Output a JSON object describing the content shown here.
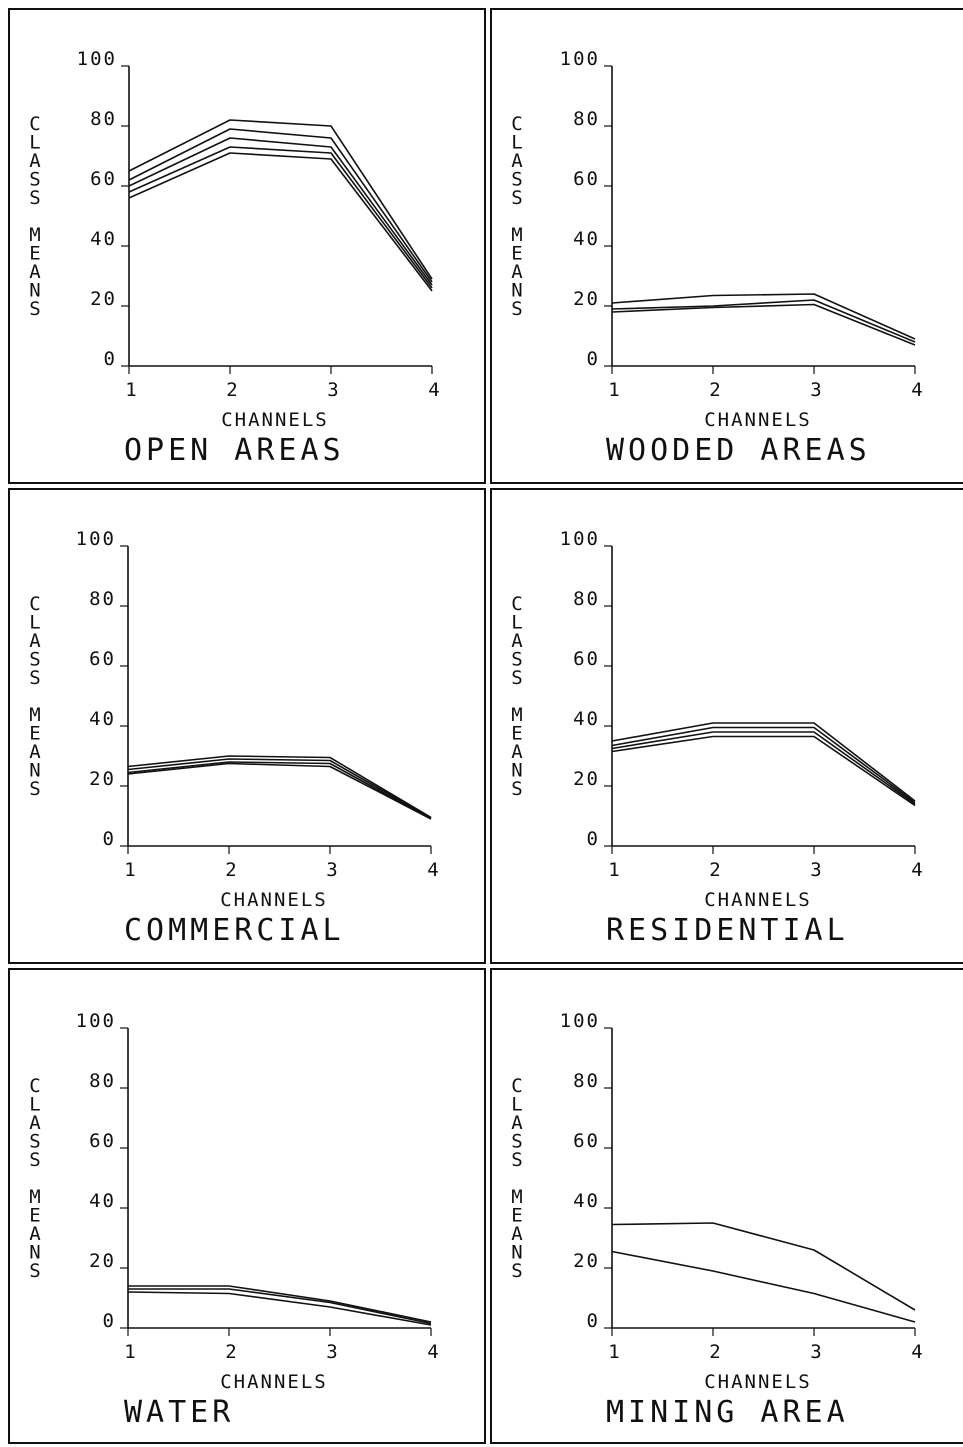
{
  "chart_data": [
    {
      "type": "line",
      "title": "OPEN AREAS",
      "xlabel": "CHANNELS",
      "ylabel": "CLASS MEANS",
      "x": [
        1,
        2,
        3,
        4
      ],
      "xticks": [
        "1",
        "2",
        "3",
        "4"
      ],
      "yticks": [
        "0",
        "20",
        "40",
        "60",
        "80",
        "100"
      ],
      "ylim": [
        0,
        100
      ],
      "series": [
        {
          "values": [
            65,
            82,
            80,
            29
          ]
        },
        {
          "values": [
            62,
            79,
            76,
            28
          ]
        },
        {
          "values": [
            60,
            76,
            73,
            27
          ]
        },
        {
          "values": [
            58,
            73,
            71,
            26
          ]
        },
        {
          "values": [
            56,
            71,
            69,
            25
          ]
        }
      ]
    },
    {
      "type": "line",
      "title": "WOODED AREAS",
      "xlabel": "CHANNELS",
      "ylabel": "CLASS MEANS",
      "x": [
        1,
        2,
        3,
        4
      ],
      "xticks": [
        "1",
        "2",
        "3",
        "4"
      ],
      "yticks": [
        "0",
        "20",
        "40",
        "60",
        "80",
        "100"
      ],
      "ylim": [
        0,
        100
      ],
      "series": [
        {
          "values": [
            21,
            23.5,
            24,
            9
          ]
        },
        {
          "values": [
            19,
            20,
            22,
            8
          ]
        },
        {
          "values": [
            18,
            19.5,
            20.5,
            7
          ]
        }
      ]
    },
    {
      "type": "line",
      "title": "COMMERCIAL",
      "xlabel": "CHANNELS",
      "ylabel": "CLASS MEANS",
      "x": [
        1,
        2,
        3,
        4
      ],
      "xticks": [
        "1",
        "2",
        "3",
        "4"
      ],
      "yticks": [
        "0",
        "20",
        "40",
        "60",
        "80",
        "100"
      ],
      "ylim": [
        0,
        100
      ],
      "series": [
        {
          "values": [
            26.5,
            30,
            29.5,
            9.5
          ]
        },
        {
          "values": [
            25.5,
            29,
            28.5,
            9.3
          ]
        },
        {
          "values": [
            24.5,
            28,
            27.5,
            9.1
          ]
        },
        {
          "values": [
            24,
            27.5,
            26.5,
            9
          ]
        }
      ]
    },
    {
      "type": "line",
      "title": "RESIDENTIAL",
      "xlabel": "CHANNELS",
      "ylabel": "CLASS MEANS",
      "x": [
        1,
        2,
        3,
        4
      ],
      "xticks": [
        "1",
        "2",
        "3",
        "4"
      ],
      "yticks": [
        "0",
        "20",
        "40",
        "60",
        "80",
        "100"
      ],
      "ylim": [
        0,
        100
      ],
      "series": [
        {
          "values": [
            35,
            41,
            41,
            15
          ]
        },
        {
          "values": [
            33.5,
            39.5,
            39.5,
            14.5
          ]
        },
        {
          "values": [
            32.5,
            38,
            38,
            14
          ]
        },
        {
          "values": [
            31.5,
            36.5,
            36.5,
            13.5
          ]
        }
      ]
    },
    {
      "type": "line",
      "title": "WATER",
      "xlabel": "CHANNELS",
      "ylabel": "CLASS MEANS",
      "x": [
        1,
        2,
        3,
        4
      ],
      "xticks": [
        "1",
        "2",
        "3",
        "4"
      ],
      "yticks": [
        "0",
        "20",
        "40",
        "60",
        "80",
        "100"
      ],
      "ylim": [
        0,
        100
      ],
      "series": [
        {
          "values": [
            14,
            14,
            9,
            2
          ]
        },
        {
          "values": [
            13,
            13,
            8.5,
            1.5
          ]
        },
        {
          "values": [
            12,
            11.5,
            7,
            1
          ]
        }
      ]
    },
    {
      "type": "line",
      "title": "MINING AREA",
      "xlabel": "CHANNELS",
      "ylabel": "CLASS MEANS",
      "x": [
        1,
        2,
        3,
        4
      ],
      "xticks": [
        "1",
        "2",
        "3",
        "4"
      ],
      "yticks": [
        "0",
        "20",
        "40",
        "60",
        "80",
        "100"
      ],
      "ylim": [
        0,
        100
      ],
      "series": [
        {
          "values": [
            34.5,
            35,
            26,
            6
          ]
        },
        {
          "values": [
            25.5,
            19,
            11.5,
            2
          ]
        }
      ]
    }
  ]
}
